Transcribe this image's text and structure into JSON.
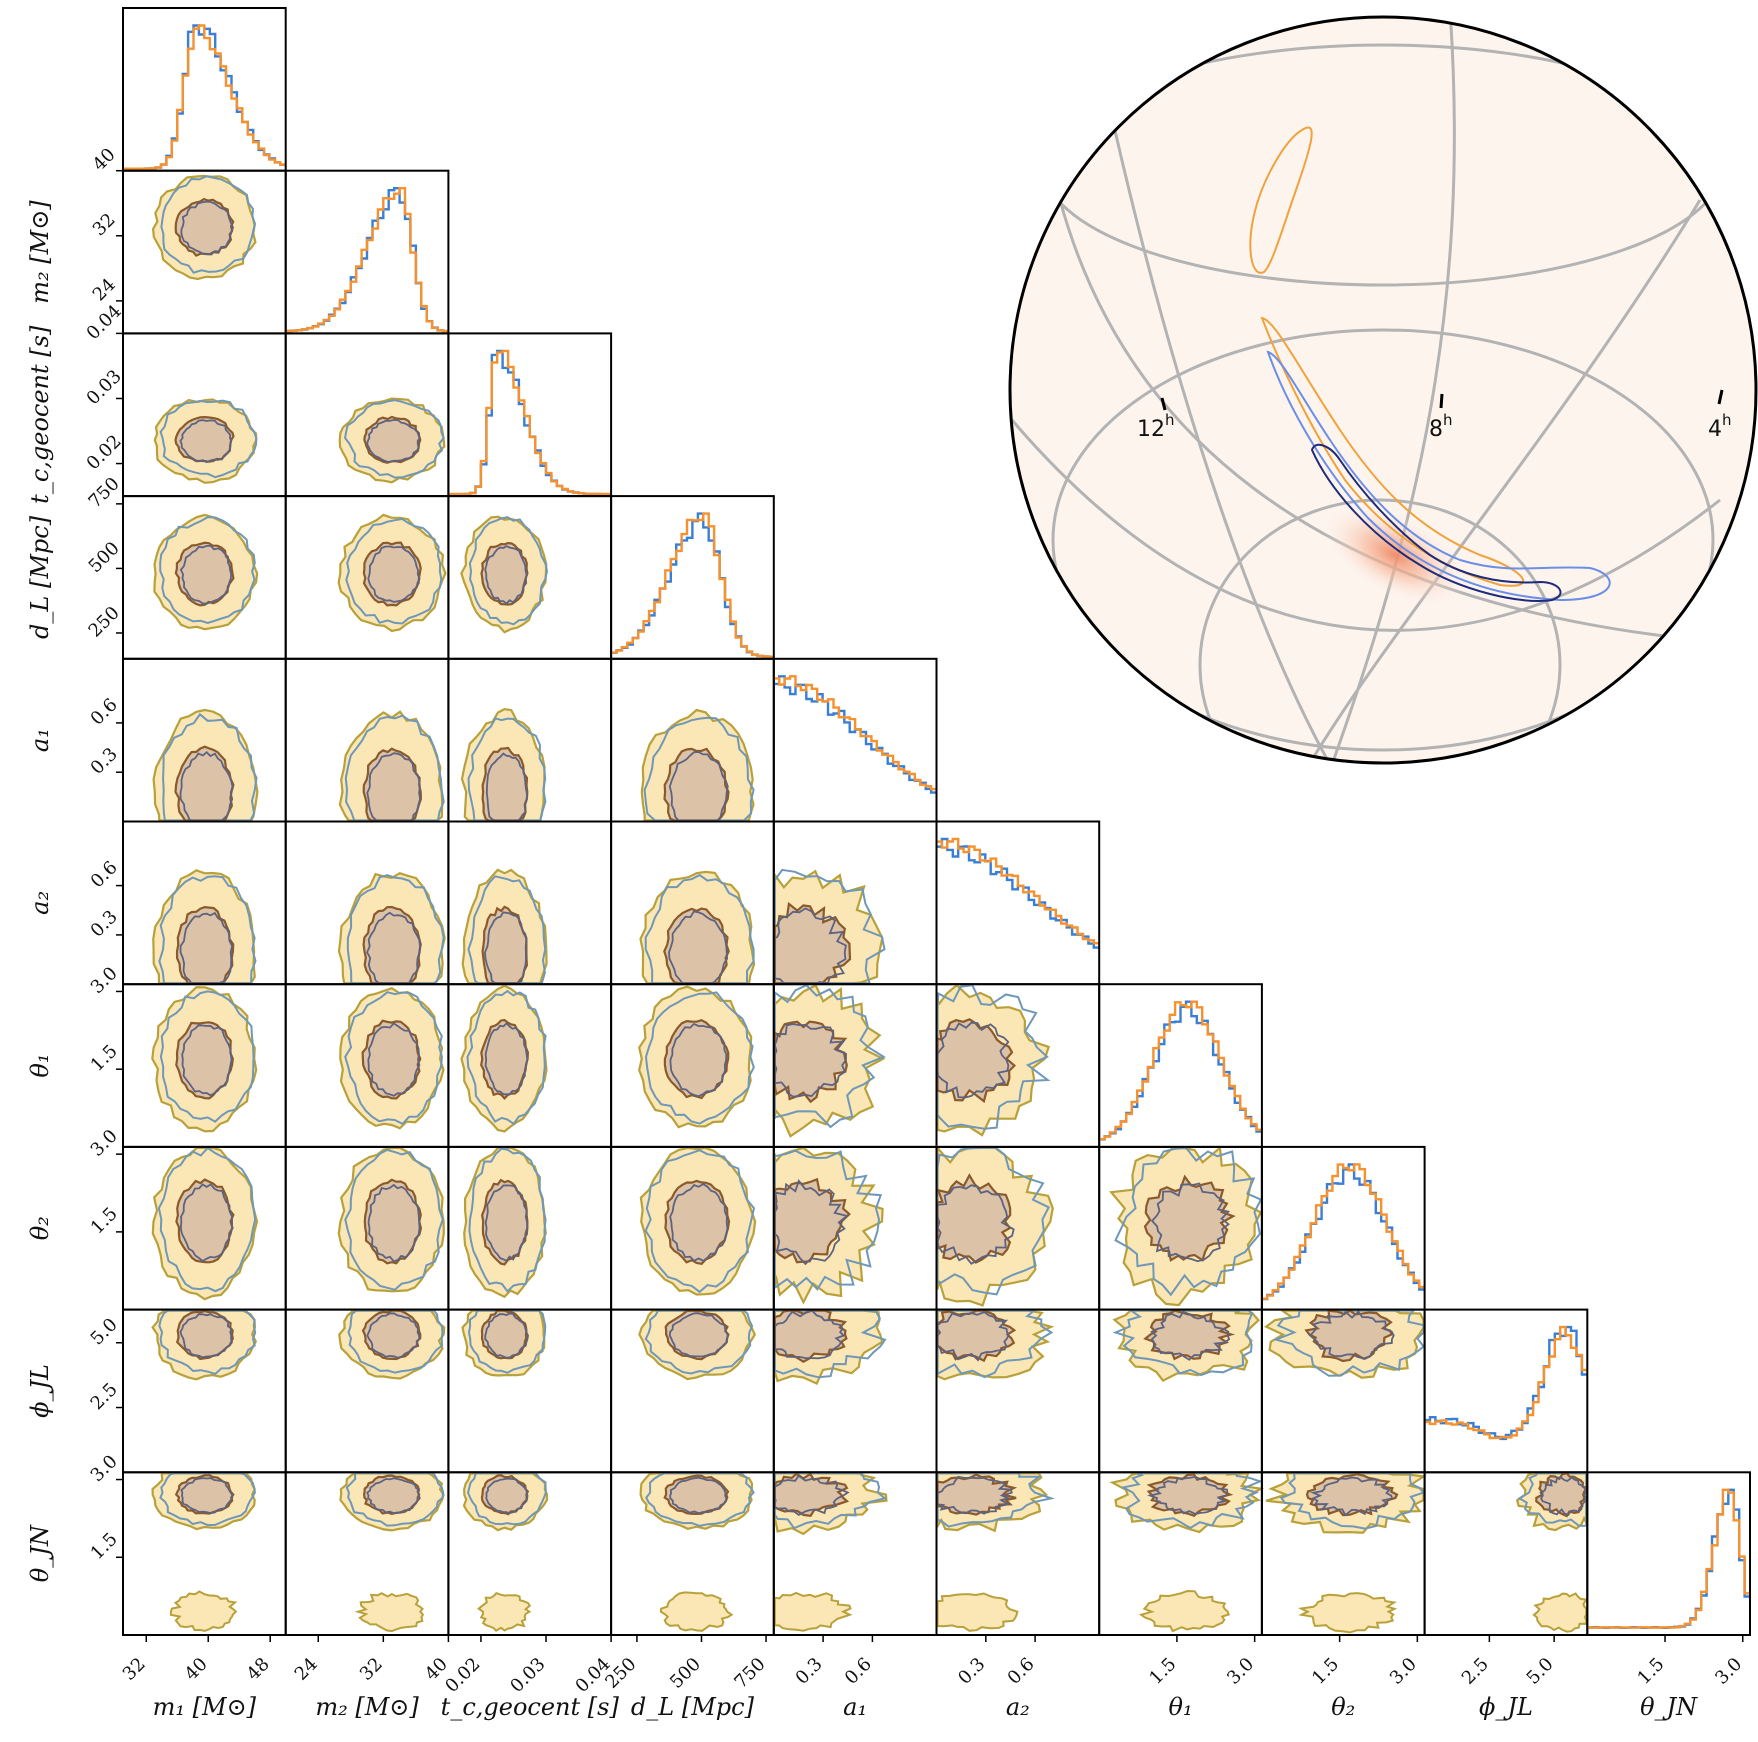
{
  "chart_data": [
    {
      "type": "corner",
      "parameters": [
        {
          "key": "m1",
          "label": "m₁ [M⊙]",
          "ticks": [
            "32",
            "40",
            "48"
          ],
          "tick_values": [
            32,
            40,
            48
          ],
          "range": [
            29,
            50
          ]
        },
        {
          "key": "m2",
          "label": "m₂ [M⊙]",
          "ticks": [
            "24",
            "32",
            "40"
          ],
          "tick_values": [
            24,
            32,
            40
          ],
          "range": [
            20,
            40
          ]
        },
        {
          "key": "tc",
          "label": "t_c,geocent [s]",
          "ticks": [
            "0.02",
            "0.03",
            "0.04"
          ],
          "tick_values": [
            0.02,
            0.03,
            0.04
          ],
          "range": [
            0.015,
            0.04
          ]
        },
        {
          "key": "dL",
          "label": "d_L [Mpc]",
          "ticks": [
            "250",
            "500",
            "750"
          ],
          "tick_values": [
            250,
            500,
            750
          ],
          "range": [
            150,
            780
          ]
        },
        {
          "key": "a1",
          "label": "a₁",
          "ticks": [
            "0.3",
            "0.6"
          ],
          "tick_values": [
            0.3,
            0.6
          ],
          "range": [
            0,
            0.99
          ]
        },
        {
          "key": "a2",
          "label": "a₂",
          "ticks": [
            "0.3",
            "0.6"
          ],
          "tick_values": [
            0.3,
            0.6
          ],
          "range": [
            0,
            0.99
          ]
        },
        {
          "key": "theta1",
          "label": "θ₁",
          "ticks": [
            "1.5",
            "3.0"
          ],
          "tick_values": [
            1.5,
            3.0
          ],
          "range": [
            0,
            3.14
          ]
        },
        {
          "key": "theta2",
          "label": "θ₂",
          "ticks": [
            "1.5",
            "3.0"
          ],
          "tick_values": [
            1.5,
            3.0
          ],
          "range": [
            0,
            3.14
          ]
        },
        {
          "key": "phiJL",
          "label": "ϕ_JL",
          "ticks": [
            "2.5",
            "5.0"
          ],
          "tick_values": [
            2.5,
            5.0
          ],
          "range": [
            0,
            6.28
          ]
        },
        {
          "key": "thetaJN",
          "label": "θ_JN",
          "ticks": [
            "1.5",
            "3.0"
          ],
          "tick_values": [
            1.5,
            3.0
          ],
          "range": [
            0,
            3.14
          ]
        }
      ],
      "diag_modes": [
        {
          "mu": 38.5,
          "sd_lo": 1.6,
          "sd_hi": 4.2
        },
        {
          "mu": 34.0,
          "sd_lo": 4.0,
          "sd_hi": 1.6
        },
        {
          "mu": 0.0225,
          "sd_lo": 0.0012,
          "sd_hi": 0.004
        },
        {
          "mu": 505,
          "sd_lo": 130,
          "sd_hi": 70
        },
        {
          "mu": 0.0,
          "sd_lo": 0.1,
          "sd_hi": 0.55
        },
        {
          "mu": 0.0,
          "sd_lo": 0.1,
          "sd_hi": 0.6
        },
        {
          "mu": 1.7,
          "sd_lo": 0.65,
          "sd_hi": 0.65
        },
        {
          "mu": 1.7,
          "sd_lo": 0.7,
          "sd_hi": 0.7
        },
        {
          "mu": 5.4,
          "sd_lo": 0.8,
          "sd_hi": 0.6
        },
        {
          "mu": 2.75,
          "sd_lo": 0.3,
          "sd_hi": 0.2
        }
      ],
      "series_colors": {
        "run_a": "#3a7fd5",
        "run_b": "#f5912f"
      },
      "contour_colors": {
        "fill_outer": "#fbe7b5",
        "fill_inner": "#dcc3a8",
        "line_outer_a": "#6f97b7",
        "line_outer_b": "#b8a13a",
        "line_inner_a": "#5c6280",
        "line_inner_b": "#8b5a2b"
      }
    },
    {
      "type": "sky-map",
      "hour_labels": [
        "12",
        "8",
        "4"
      ],
      "hour_superscript": "h",
      "colors": {
        "background": "#fdf4ee",
        "grid": "#b3b3b3",
        "contour_a": "#6b8fe6",
        "contour_a_inner": "#1e2a7a",
        "contour_b": "#f0a23c",
        "density_peak": "#ef9a77"
      }
    }
  ]
}
